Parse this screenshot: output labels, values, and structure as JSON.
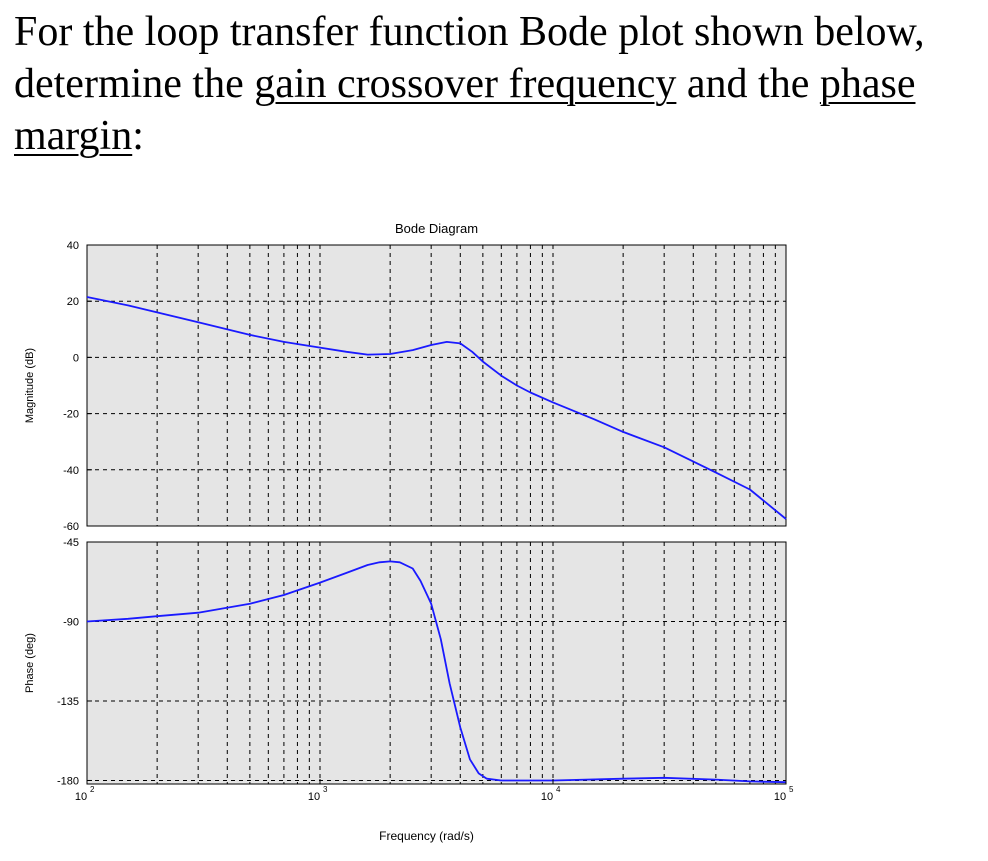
{
  "question": {
    "part1": "For the loop transfer function Bode plot shown below, determine the ",
    "term1": "gain crossover frequency",
    "part2": " and the ",
    "term2": "phase margin",
    "part3": ":"
  },
  "chart_data": {
    "type": "line",
    "title": "Bode Diagram",
    "xlabel": "Frequency (rad/s)",
    "xscale": "log",
    "xlim": [
      100,
      100000
    ],
    "x_ticks": [
      {
        "base": "10",
        "exp": "2",
        "value": 100
      },
      {
        "base": "10",
        "exp": "3",
        "value": 1000
      },
      {
        "base": "10",
        "exp": "4",
        "value": 10000
      },
      {
        "base": "10",
        "exp": "5",
        "value": 100000
      }
    ],
    "grid": true,
    "panels": [
      {
        "name": "magnitude",
        "ylabel": "Magnitude (dB)",
        "ylim": [
          -60,
          40
        ],
        "y_ticks": [
          40,
          20,
          0,
          -20,
          -40,
          -60
        ],
        "series": [
          {
            "color": "#1a1aff",
            "x": [
              100,
              150,
              200,
              300,
              500,
              700,
              1000,
              1300,
              1600,
              2000,
              2500,
              3000,
              3500,
              4000,
              4500,
              5000,
              6000,
              7000,
              8000,
              10000,
              15000,
              20000,
              30000,
              50000,
              70000,
              100000
            ],
            "y": [
              21.5,
              18.5,
              16,
              12.5,
              8,
              5.5,
              3.5,
              2,
              1,
              1.2,
              2.6,
              4.4,
              5.5,
              5,
              2,
              -1.5,
              -6.5,
              -10,
              -12.5,
              -16,
              -22,
              -26.5,
              -32,
              -41,
              -47,
              -57.5
            ]
          }
        ]
      },
      {
        "name": "phase",
        "ylabel": "Phase (deg)",
        "ylim": [
          -182,
          -45
        ],
        "y_ticks": [
          -45,
          -90,
          -135,
          -180
        ],
        "series": [
          {
            "color": "#1a1aff",
            "x": [
              100,
              150,
              200,
              300,
              500,
              700,
              1000,
              1300,
              1600,
              1800,
              2000,
              2200,
              2500,
              2700,
              3000,
              3300,
              3600,
              4000,
              4400,
              4800,
              5200,
              6000,
              7000,
              10000,
              20000,
              30000,
              50000,
              70000,
              100000
            ],
            "y": [
              -90,
              -88.5,
              -87,
              -85,
              -80,
              -75,
              -68,
              -62.5,
              -58,
              -56.5,
              -56,
              -56.5,
              -60,
              -67,
              -80,
              -100,
              -125,
              -150,
              -168,
              -176,
              -179,
              -180,
              -180,
              -180,
              -179,
              -178.5,
              -179.5,
              -180.5,
              -181
            ]
          }
        ]
      }
    ]
  }
}
